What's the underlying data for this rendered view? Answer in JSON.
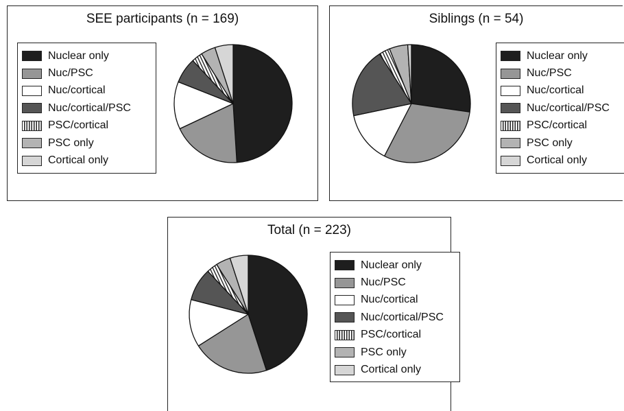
{
  "legend_labels": [
    "Nuclear only",
    "Nuc/PSC",
    "Nuc/cortical",
    "Nuc/cortical/PSC",
    "PSC/cortical",
    "PSC only",
    "Cortical only"
  ],
  "colors": [
    "#1e1e1e",
    "#969696",
    "#ffffff",
    "#555555",
    "hatch",
    "#b3b3b3",
    "#d6d6d6"
  ],
  "chart_data": [
    {
      "type": "pie",
      "title": "SEE participants (n = 169)",
      "categories": [
        "Nuclear only",
        "Nuc/PSC",
        "Nuc/cortical",
        "Nuc/cortical/PSC",
        "PSC/cortical",
        "PSC only",
        "Cortical only"
      ],
      "values": [
        49,
        19,
        13,
        7,
        3,
        4,
        5
      ],
      "legend_position": "left"
    },
    {
      "type": "pie",
      "title": "Siblings (n = 54)",
      "categories": [
        "Nuclear only",
        "Nuc/PSC",
        "Nuc/cortical",
        "Nuc/cortical/PSC",
        "PSC/cortical",
        "PSC only",
        "Cortical only"
      ],
      "values": [
        27,
        30,
        14,
        19,
        3,
        5,
        1
      ],
      "legend_position": "right"
    },
    {
      "type": "pie",
      "title": "Total (n = 223)",
      "categories": [
        "Nuclear only",
        "Nuc/PSC",
        "Nuc/cortical",
        "Nuc/cortical/PSC",
        "PSC/cortical",
        "PSC only",
        "Cortical only"
      ],
      "values": [
        45,
        21,
        13,
        9,
        3,
        4,
        5
      ],
      "legend_position": "right"
    }
  ]
}
